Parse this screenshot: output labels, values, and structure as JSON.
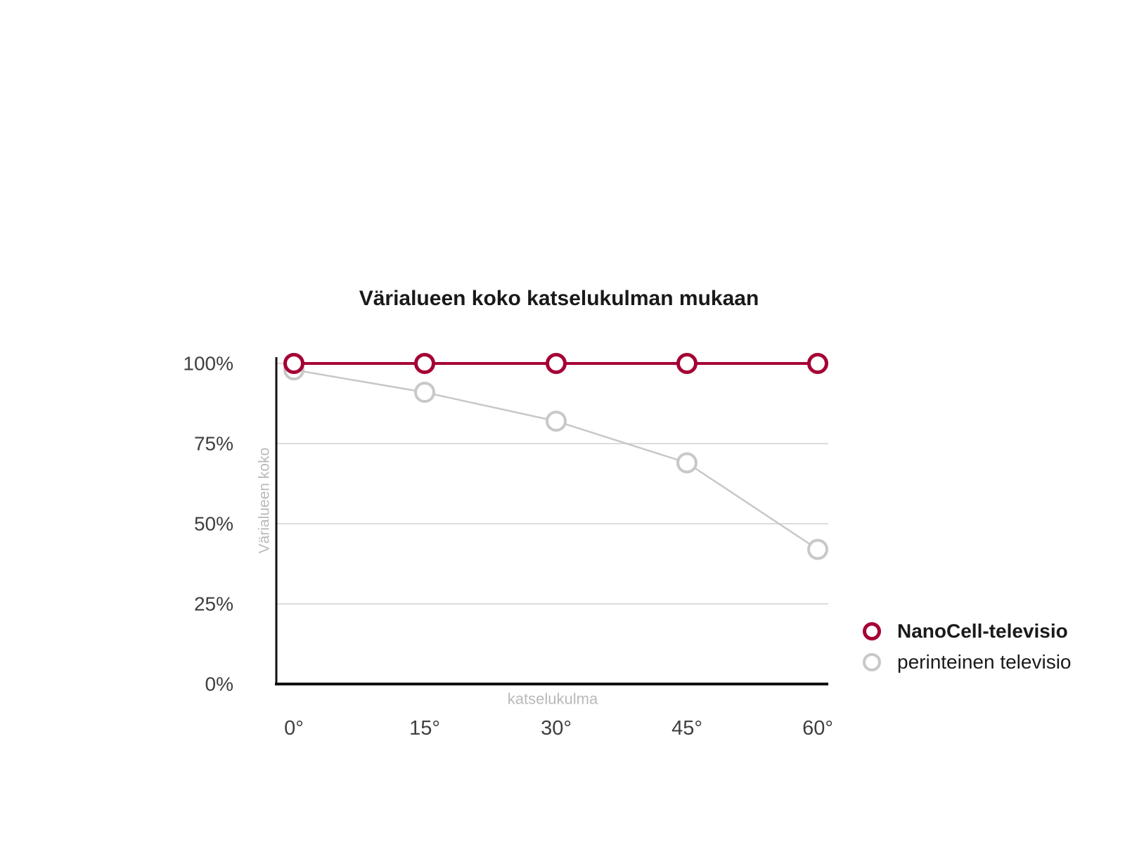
{
  "figure": {
    "background": "#ffffff"
  },
  "chart_data": {
    "type": "line",
    "title": "Värialueen koko katselukulman mukaan",
    "xlabel": "katselukulma",
    "ylabel": "Värialueen koko",
    "x_categories": [
      "0°",
      "15°",
      "30°",
      "45°",
      "60°"
    ],
    "x_values_degrees": [
      0,
      15,
      30,
      45,
      60
    ],
    "ylim": [
      0,
      100
    ],
    "y_ticks": [
      {
        "value": 100,
        "label": "100%"
      },
      {
        "value": 75,
        "label": "75%"
      },
      {
        "value": 50,
        "label": "50%"
      },
      {
        "value": 25,
        "label": "25%"
      },
      {
        "value": 0,
        "label": "0%"
      }
    ],
    "grid": "horizontal gridlines at 25%, 50%, 75%, 100%",
    "legend_position": "right of plot, lower area",
    "series": [
      {
        "name": "NanoCell-televisio",
        "color": "#a50034",
        "marker": "open-circle",
        "values": [
          100,
          100,
          100,
          100,
          100
        ]
      },
      {
        "name": "perinteinen televisio",
        "color": "#c8c8c8",
        "marker": "open-circle",
        "values": [
          98,
          91,
          82,
          69,
          42
        ]
      }
    ]
  },
  "legend": {
    "items": [
      {
        "label": "NanoCell-televisio",
        "color": "#a50034",
        "weight": "bold"
      },
      {
        "label": "perinteinen televisio",
        "color": "#c8c8c8",
        "weight": "normal"
      }
    ]
  },
  "colors": {
    "background": "#ffffff",
    "axis": "#111111",
    "gridline": "#dcdcdc",
    "tick_label": "#3f3f3f",
    "axis_title": "#b9b9b9",
    "legend_text": "#1a1a1a",
    "nanocell_red": "#a50034",
    "conventional_gray": "#c8c8c8"
  }
}
